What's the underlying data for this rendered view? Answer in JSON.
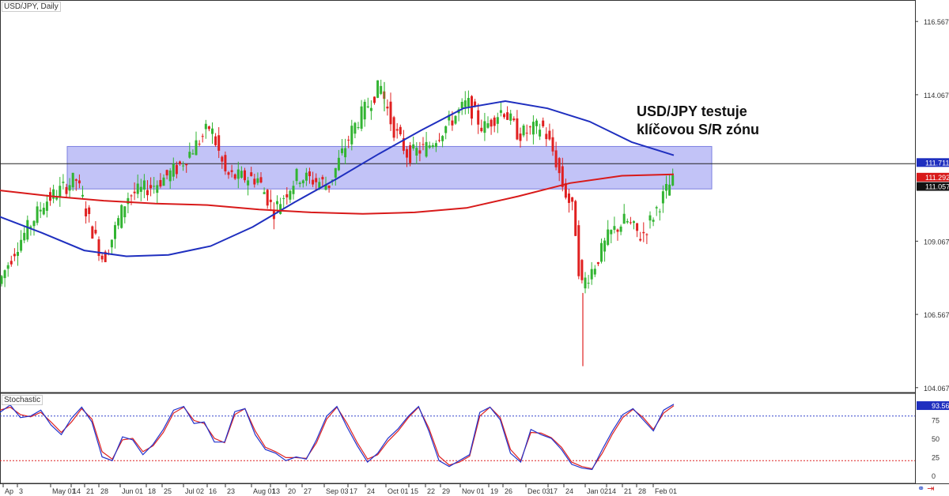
{
  "symbol_label": "USD/JPY, Daily",
  "annotation": {
    "line1": "USD/JPY testuje",
    "line2": "klíčovou S/R zónu"
  },
  "price_axis": [
    "116.567",
    "114.067",
    "111.711",
    "111.292",
    "111.057",
    "109.067",
    "106.567",
    "104.067"
  ],
  "osc_axis": [
    "93.56",
    "75",
    "50",
    "25",
    "0"
  ],
  "colors": {
    "bull": "#32b432",
    "bear": "#e02020",
    "ma_blue": "#1f2fbf",
    "ma_red": "#d81a1a",
    "zone": "#8f92f0",
    "stoch_k": "#2233cc",
    "stoch_d": "#dd2222"
  },
  "chart_data": [
    {
      "type": "candlestick",
      "title": "USD/JPY, Daily",
      "ylim": [
        103.9,
        117.3
      ],
      "x_ticks": [
        "Ap",
        "3",
        "May 01",
        "14",
        "21",
        "28",
        "Jun 01",
        "18",
        "25",
        "Jul 02",
        "16",
        "23",
        "Aug 01",
        "13",
        "20",
        "27",
        "Sep 03",
        "17",
        "24",
        "Oct 01",
        "15",
        "22",
        "29",
        "Nov 01",
        "19",
        "26",
        "Dec 03",
        "17",
        "24",
        "Jan 02",
        "14",
        "21",
        "28",
        "Feb 01"
      ],
      "sr_zone": [
        110.85,
        112.3
      ],
      "horizontal_line": 111.711,
      "annotations": [
        "USD/JPY testuje klíčovou S/R zónu"
      ],
      "series": [
        {
          "name": "Price",
          "type": "candles"
        },
        {
          "type": "line",
          "values": [
            109.9,
            109.35,
            108.75,
            108.55,
            108.6,
            108.9,
            109.55,
            110.4,
            111.2,
            112.05,
            112.85,
            113.6,
            113.85,
            113.6,
            113.15,
            112.45,
            112.0
          ]
        },
        {
          "type": "line",
          "values": [
            110.8,
            110.6,
            110.45,
            110.35,
            110.3,
            110.15,
            110.05,
            110.0,
            110.05,
            110.2,
            110.6,
            111.05,
            111.3,
            111.35
          ]
        }
      ],
      "key_points": [
        {
          "date": "Oct 01",
          "high": 114.5
        },
        {
          "date": "Jan 02",
          "low": 104.8
        },
        {
          "date": "Feb 01",
          "close": 111.057
        }
      ]
    },
    {
      "type": "line",
      "title": "Stochastic",
      "ylim": [
        0,
        100
      ],
      "levels": [
        80,
        20
      ],
      "series": [
        {
          "type": "line",
          "values": [
            85,
            95,
            78,
            80,
            88,
            68,
            55,
            77,
            92,
            72,
            25,
            20,
            52,
            48,
            28,
            42,
            62,
            88,
            93,
            70,
            72,
            45,
            45,
            86,
            90,
            55,
            35,
            30,
            20,
            25,
            22,
            48,
            80,
            93,
            65,
            40,
            18,
            30,
            50,
            63,
            80,
            93,
            60,
            20,
            12,
            20,
            28,
            85,
            92,
            75,
            30,
            18,
            62,
            55,
            50,
            35,
            15,
            10,
            8,
            35,
            60,
            82,
            90,
            75,
            60,
            88,
            96
          ]
        },
        {
          "type": "line",
          "values": [
            88,
            92,
            82,
            79,
            85,
            72,
            58,
            72,
            90,
            76,
            32,
            22,
            48,
            50,
            32,
            40,
            58,
            84,
            92,
            74,
            70,
            50,
            44,
            82,
            90,
            60,
            38,
            32,
            24,
            24,
            23,
            44,
            76,
            92,
            70,
            44,
            22,
            28,
            46,
            60,
            78,
            92,
            64,
            26,
            14,
            18,
            26,
            80,
            92,
            78,
            35,
            20,
            58,
            57,
            51,
            38,
            18,
            12,
            9,
            30,
            56,
            78,
            89,
            78,
            62,
            84,
            94
          ]
        }
      ],
      "last_value": "93.56"
    }
  ]
}
